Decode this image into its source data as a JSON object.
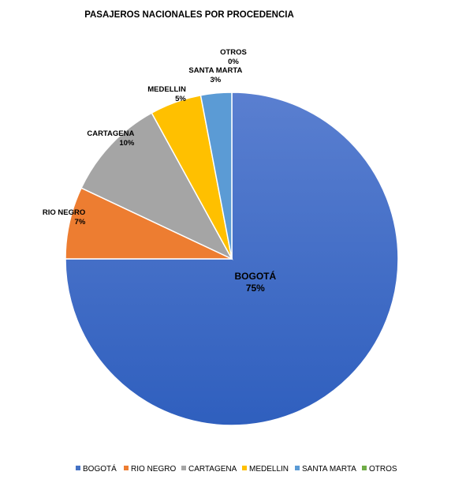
{
  "chart_data": {
    "type": "pie",
    "title": "PASAJEROS NACIONALES POR PROCEDENCIA",
    "categories": [
      "BOGOTÁ",
      "RIO NEGRO",
      "CARTAGENA",
      "MEDELLIN",
      "SANTA MARTA",
      "OTROS"
    ],
    "values": [
      75,
      7,
      10,
      5,
      3,
      0
    ],
    "value_labels": [
      "75%",
      "7%",
      "10%",
      "5%",
      "3%",
      "0%"
    ],
    "unit": "%",
    "colors": [
      "#4472C4",
      "#ED7D31",
      "#A5A5A5",
      "#FFC000",
      "#5B9BD5",
      "#70AD47"
    ],
    "legend_position": "bottom"
  }
}
